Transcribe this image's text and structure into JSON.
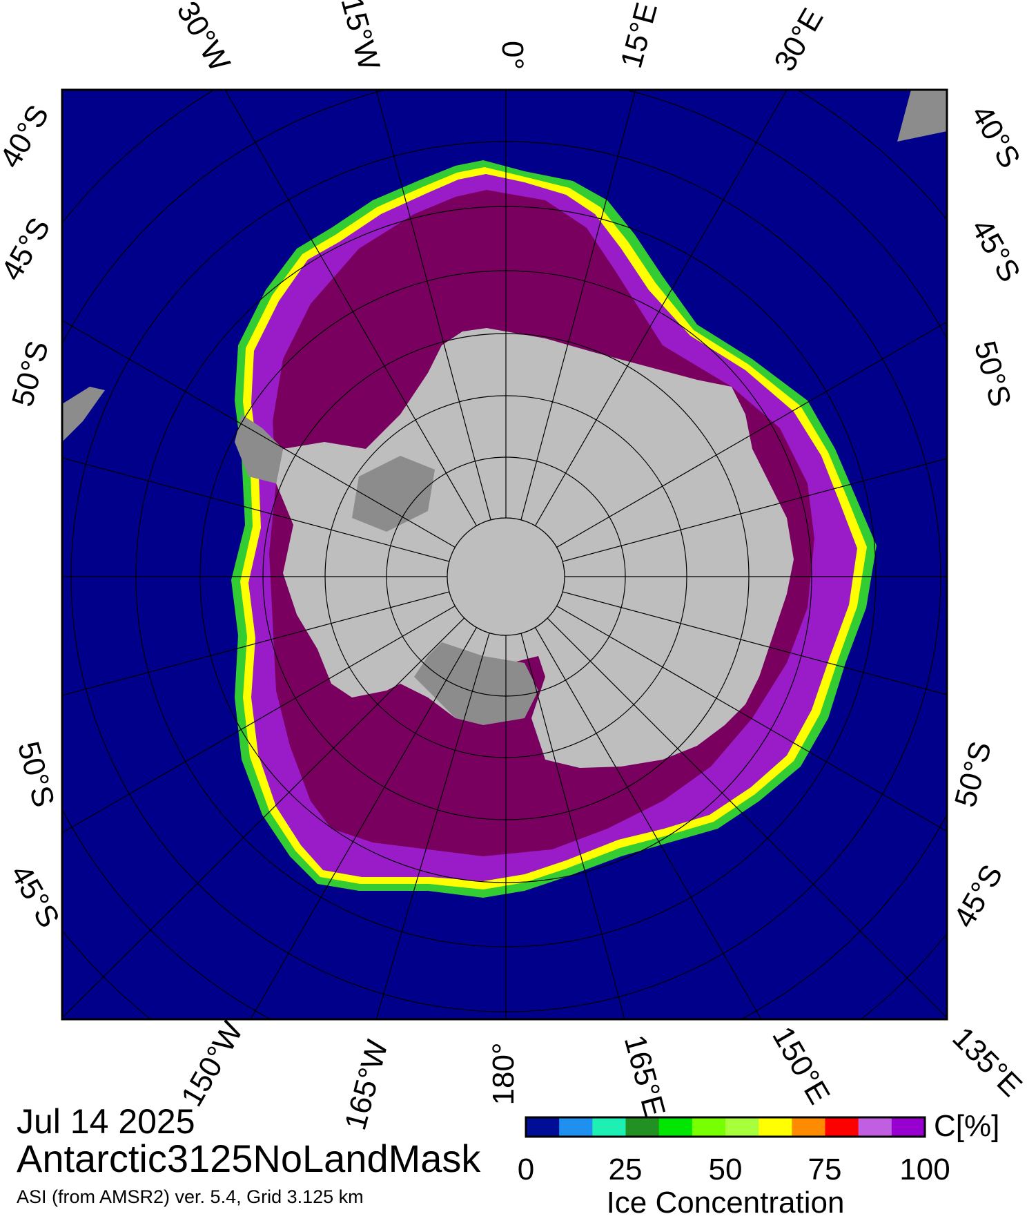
{
  "map": {
    "meridian_labels_top": [
      "30°W",
      "15°W",
      "0°",
      "15°E",
      "30°E"
    ],
    "meridian_labels_bottom": [
      "150°W",
      "165°W",
      "180°",
      "165°E",
      "150°E",
      "135°E"
    ],
    "latitude_labels_left": [
      "40°S",
      "45°S",
      "50°S",
      "50°S",
      "45°S"
    ],
    "latitude_labels_right": [
      "40°S",
      "45°S",
      "50°S",
      "50°S",
      "45°S"
    ]
  },
  "colors": {
    "ocean": "#00008b",
    "land": "#bebebe",
    "ice_shelf": "#8c8c8c",
    "ice_full": "#7a0060",
    "ice_high": "#9a1cc8",
    "ice_edge_yellow": "#ffff00",
    "ice_edge_green": "#33cc33"
  },
  "legend": {
    "unit": "C[%]",
    "title": "Ice Concentration",
    "ticks": [
      "0",
      "25",
      "50",
      "75",
      "100"
    ],
    "bins": [
      "#000e96",
      "#1f8ff0",
      "#1ef0b4",
      "#229022",
      "#00e600",
      "#78ff00",
      "#a8ff3c",
      "#ffff00",
      "#ff8c00",
      "#ff0000",
      "#c060e0",
      "#9800d0"
    ]
  },
  "caption": {
    "date": "Jul 14 2025",
    "product": "Antarctic3125NoLandMask",
    "info": "ASI (from AMSR2) ver. 5.4,  Grid 3.125 km"
  }
}
